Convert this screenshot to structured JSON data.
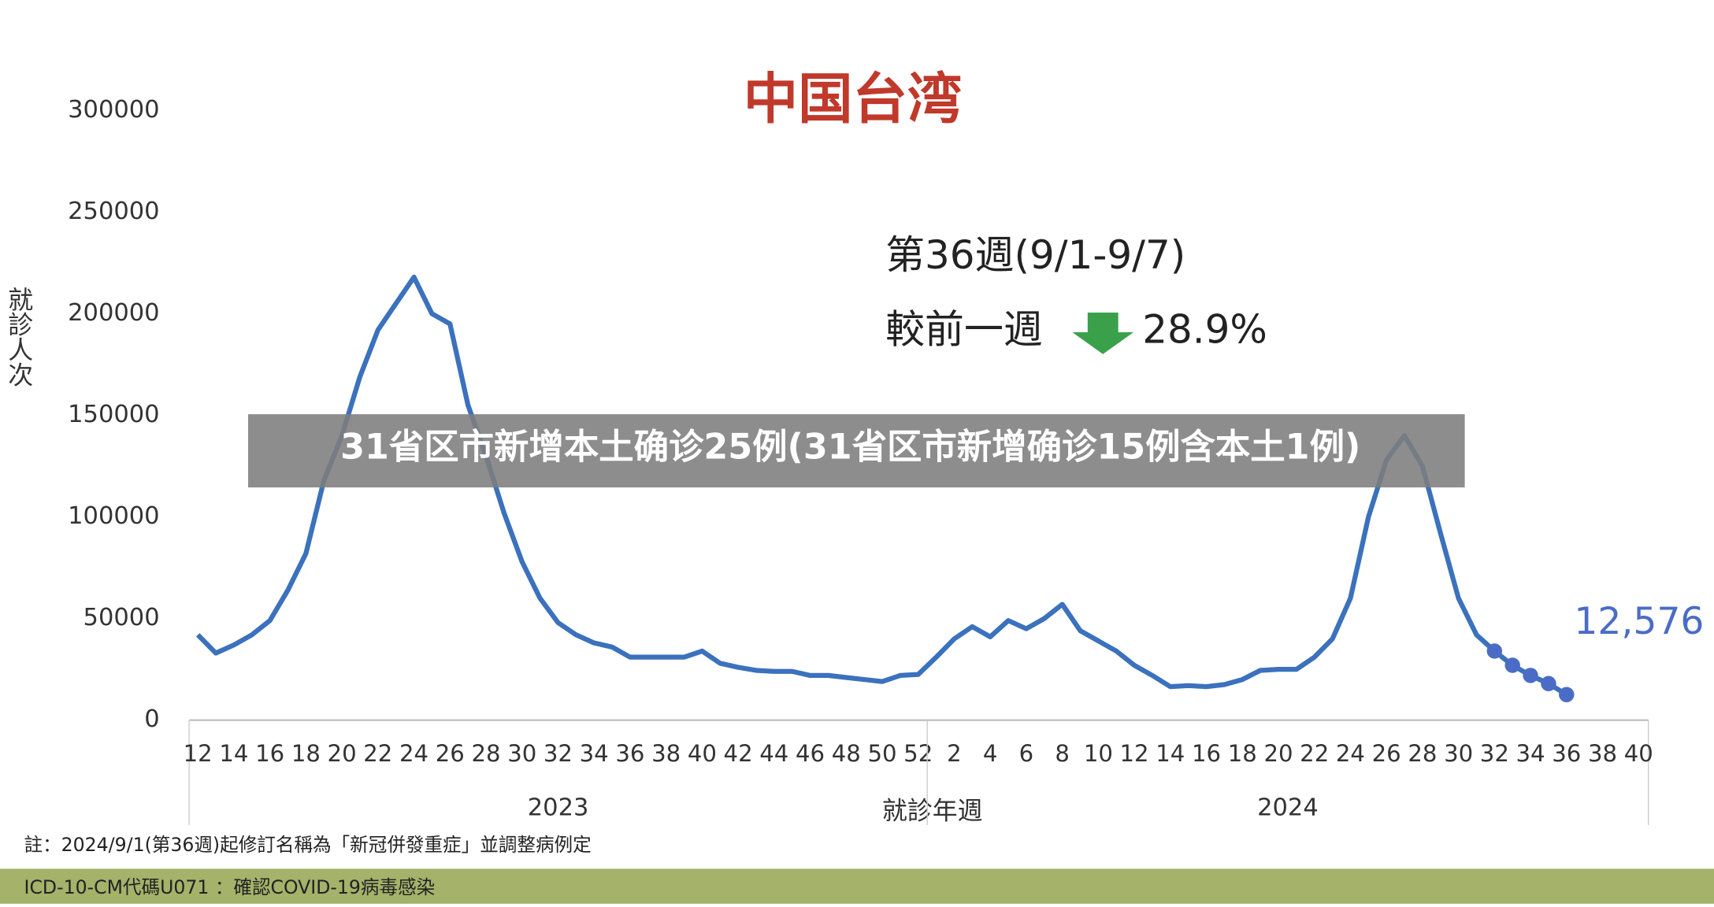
{
  "banner": "31省区市新增本土确诊25例(31省区市新增确诊15例含本土1例)",
  "chart_data": {
    "type": "line",
    "title": "中国台湾",
    "y_label": "就診人次",
    "x_label": "就診年週",
    "x_groups": [
      "2023",
      "2024"
    ],
    "annotations": [
      "第36週(9/1-9/7)",
      "較前一週",
      "28.9%"
    ],
    "categories": [
      "12",
      null,
      "14",
      null,
      "16",
      null,
      "18",
      null,
      "20",
      null,
      "22",
      null,
      "24",
      null,
      "26",
      null,
      "28",
      null,
      "30",
      null,
      "32",
      null,
      "34",
      null,
      "36",
      null,
      "38",
      null,
      "40",
      null,
      "42",
      null,
      "44",
      null,
      "46",
      null,
      "48",
      null,
      "50",
      null,
      "52",
      null,
      "2",
      null,
      "4",
      null,
      "6",
      null,
      "8",
      null,
      "10",
      null,
      "12",
      null,
      "14",
      null,
      "16",
      null,
      "18",
      null,
      "20",
      null,
      "22",
      null,
      "24",
      null,
      "26",
      null,
      "28",
      null,
      "30",
      null,
      "32",
      null,
      "34",
      null,
      "36",
      null,
      "38",
      null,
      "40"
    ],
    "series": [
      {
        "color": "#3b71bd",
        "markers": false,
        "values": [
          42000,
          33000,
          37000,
          42000,
          49000,
          64000,
          82000,
          118000,
          140000,
          169000,
          192000,
          205000,
          218000,
          200000,
          195000,
          155000,
          130000,
          102000,
          78000,
          60000,
          48000,
          42000,
          38000,
          36000,
          31000,
          31000,
          31000,
          31000,
          34000,
          28000,
          26000,
          24500,
          24000,
          24000,
          22000,
          22000,
          21000,
          20000,
          19000,
          22000,
          22500,
          31000,
          40000,
          46000,
          41000,
          49000,
          45000,
          50000,
          57000,
          44000,
          39000,
          34000,
          27000,
          22000,
          16500,
          17000,
          16500,
          17500,
          20000,
          24500,
          25000,
          25000,
          31000,
          40000,
          60000,
          100000,
          128000,
          140000,
          125000,
          92000,
          60000,
          42000,
          34000,
          27000,
          22000,
          18000,
          12576,
          null,
          null,
          null,
          null
        ]
      },
      {
        "color": "#4b6cc6",
        "markers": true,
        "values": [
          null,
          null,
          null,
          null,
          null,
          null,
          null,
          null,
          null,
          null,
          null,
          null,
          null,
          null,
          null,
          null,
          null,
          null,
          null,
          null,
          null,
          null,
          null,
          null,
          null,
          null,
          null,
          null,
          null,
          null,
          null,
          null,
          null,
          null,
          null,
          null,
          null,
          null,
          null,
          null,
          null,
          null,
          null,
          null,
          null,
          null,
          null,
          null,
          null,
          null,
          null,
          null,
          null,
          null,
          null,
          null,
          null,
          null,
          null,
          null,
          null,
          null,
          null,
          null,
          null,
          null,
          null,
          null,
          null,
          null,
          null,
          null,
          34000,
          27000,
          22000,
          18000,
          12576,
          null,
          null,
          null,
          null
        ],
        "value_labels": [
          null,
          null,
          null,
          null,
          null,
          null,
          null,
          null,
          null,
          null,
          null,
          null,
          null,
          null,
          null,
          null,
          null,
          null,
          null,
          null,
          null,
          null,
          null,
          null,
          null,
          null,
          null,
          null,
          null,
          null,
          null,
          null,
          null,
          null,
          null,
          null,
          null,
          null,
          null,
          null,
          null,
          null,
          null,
          null,
          null,
          null,
          null,
          null,
          null,
          null,
          null,
          null,
          null,
          null,
          null,
          null,
          null,
          null,
          null,
          null,
          null,
          null,
          null,
          null,
          null,
          null,
          null,
          null,
          null,
          null,
          null,
          null,
          null,
          null,
          null,
          null,
          "12,576",
          null,
          null,
          null,
          null
        ]
      }
    ],
    "ylim": [
      0,
      300000
    ],
    "yticks": [
      0,
      50000,
      100000,
      150000,
      200000,
      250000,
      300000
    ],
    "grid": false
  },
  "notes": [
    "註：2024/9/1(第36週)起修訂名稱為「新冠併發重症」並調整病例定",
    "ICD-10-CM代碼U071 ：確認COVID-19病毒感染"
  ]
}
